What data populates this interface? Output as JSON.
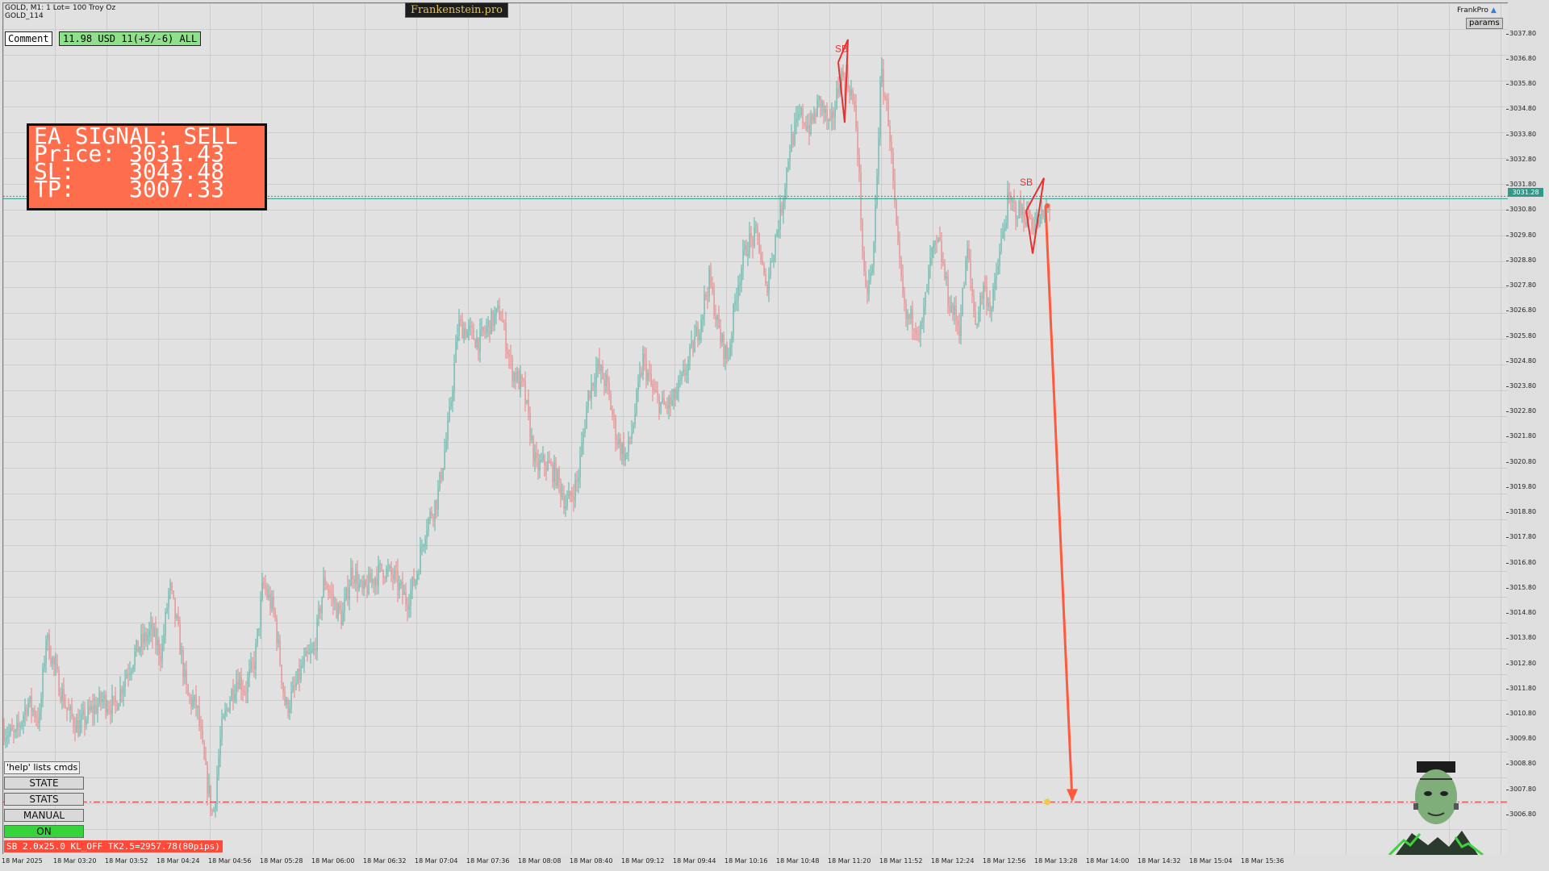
{
  "header": {
    "symbol_line": "GOLD, M1:  1 Lot= 100 Troy Oz",
    "symbol_sub": "GOLD_114",
    "brand": "Frankenstein.pro",
    "top_right_label": "FrankPro",
    "params_label": "params"
  },
  "comment": {
    "button_label": "Comment",
    "stats": "11.98 USD 11(+5/-6) ALL"
  },
  "signal": {
    "line1": "EA SIGNAL: SELL",
    "line2": "Price: 3031.43",
    "line3": "SL:    3043.48",
    "line4": "TP:    3007.33"
  },
  "controls": {
    "help": "'help' lists cmds",
    "state": "STATE",
    "stats": "STATS",
    "manual": "MANUAL",
    "on": "ON",
    "status_line": "SB 2.0x25.0 KL_OFF TK2.5=2957.78(80pips)"
  },
  "chart_data": {
    "type": "candlestick",
    "symbol": "GOLD",
    "timeframe": "M1",
    "current_price": "3031.28",
    "y_ticks": [
      "3037.80",
      "3036.80",
      "3035.80",
      "3034.80",
      "3033.80",
      "3032.80",
      "3031.80",
      "3030.80",
      "3029.80",
      "3028.80",
      "3027.80",
      "3026.80",
      "3025.80",
      "3024.80",
      "3023.80",
      "3022.80",
      "3021.80",
      "3020.80",
      "3019.80",
      "3018.80",
      "3017.80",
      "3016.80",
      "3015.80",
      "3014.80",
      "3013.80",
      "3012.80",
      "3011.80",
      "3010.80",
      "3009.80",
      "3008.80",
      "3007.80",
      "3006.80"
    ],
    "x_ticks": [
      "18 Mar 2025",
      "18 Mar 03:20",
      "18 Mar 03:52",
      "18 Mar 04:24",
      "18 Mar 04:56",
      "18 Mar 05:28",
      "18 Mar 06:00",
      "18 Mar 06:32",
      "18 Mar 07:04",
      "18 Mar 07:36",
      "18 Mar 08:08",
      "18 Mar 08:40",
      "18 Mar 09:12",
      "18 Mar 09:44",
      "18 Mar 10:16",
      "18 Mar 10:48",
      "18 Mar 11:20",
      "18 Mar 11:52",
      "18 Mar 12:24",
      "18 Mar 12:56",
      "18 Mar 13:28",
      "18 Mar 14:00",
      "18 Mar 14:32",
      "18 Mar 15:04",
      "18 Mar 15:36"
    ],
    "ylim": [
      3005.9,
      3038.4
    ],
    "price_path": [
      [
        0,
        3010.2
      ],
      [
        15,
        3009.9
      ],
      [
        30,
        3011.3
      ],
      [
        45,
        3010.6
      ],
      [
        53,
        3013.9
      ],
      [
        68,
        3012.1
      ],
      [
        80,
        3010.9
      ],
      [
        93,
        3010.3
      ],
      [
        108,
        3010.9
      ],
      [
        123,
        3011.4
      ],
      [
        138,
        3011.1
      ],
      [
        153,
        3012.5
      ],
      [
        168,
        3013.5
      ],
      [
        183,
        3014.1
      ],
      [
        196,
        3013.2
      ],
      [
        206,
        3015.9
      ],
      [
        216,
        3014.2
      ],
      [
        228,
        3011.5
      ],
      [
        240,
        3011.1
      ],
      [
        250,
        3008.6
      ],
      [
        260,
        3006.7
      ],
      [
        270,
        3010.1
      ],
      [
        280,
        3011.4
      ],
      [
        290,
        3012.3
      ],
      [
        300,
        3011.8
      ],
      [
        312,
        3013.0
      ],
      [
        322,
        3016.0
      ],
      [
        336,
        3014.8
      ],
      [
        350,
        3011.0
      ],
      [
        360,
        3011.7
      ],
      [
        372,
        3012.8
      ],
      [
        385,
        3013.3
      ],
      [
        398,
        3016.2
      ],
      [
        410,
        3015.2
      ],
      [
        420,
        3014.6
      ],
      [
        432,
        3016.6
      ],
      [
        445,
        3015.6
      ],
      [
        456,
        3016.1
      ],
      [
        470,
        3016.6
      ],
      [
        485,
        3016.2
      ],
      [
        500,
        3015.3
      ],
      [
        512,
        3016.3
      ],
      [
        523,
        3018.2
      ],
      [
        538,
        3019.4
      ],
      [
        552,
        3022.3
      ],
      [
        564,
        3026.3
      ],
      [
        576,
        3026.0
      ],
      [
        590,
        3025.6
      ],
      [
        602,
        3026.3
      ],
      [
        616,
        3026.8
      ],
      [
        630,
        3024.5
      ],
      [
        645,
        3023.7
      ],
      [
        660,
        3020.6
      ],
      [
        672,
        3020.8
      ],
      [
        685,
        3020.3
      ],
      [
        698,
        3019.1
      ],
      [
        712,
        3020.1
      ],
      [
        725,
        3023.5
      ],
      [
        736,
        3024.6
      ],
      [
        748,
        3023.9
      ],
      [
        760,
        3021.8
      ],
      [
        772,
        3021.0
      ],
      [
        780,
        3022.2
      ],
      [
        793,
        3024.9
      ],
      [
        806,
        3023.5
      ],
      [
        818,
        3023.0
      ],
      [
        830,
        3023.2
      ],
      [
        842,
        3024.1
      ],
      [
        852,
        3025.1
      ],
      [
        862,
        3026.2
      ],
      [
        875,
        3028.1
      ],
      [
        888,
        3025.8
      ],
      [
        898,
        3024.9
      ],
      [
        910,
        3027.9
      ],
      [
        922,
        3029.5
      ],
      [
        935,
        3029.8
      ],
      [
        945,
        3027.6
      ],
      [
        955,
        3029.4
      ],
      [
        965,
        3031.0
      ],
      [
        975,
        3033.4
      ],
      [
        988,
        3034.6
      ],
      [
        1000,
        3034.1
      ],
      [
        1012,
        3035.2
      ],
      [
        1025,
        3034.0
      ],
      [
        1038,
        3036.2
      ],
      [
        1050,
        3035.7
      ],
      [
        1058,
        3034.0
      ],
      [
        1068,
        3027.3
      ],
      [
        1078,
        3028.6
      ],
      [
        1088,
        3036.3
      ],
      [
        1098,
        3034.3
      ],
      [
        1108,
        3029.4
      ],
      [
        1118,
        3026.5
      ],
      [
        1128,
        3026.5
      ],
      [
        1138,
        3026.0
      ],
      [
        1150,
        3029.0
      ],
      [
        1160,
        3029.5
      ],
      [
        1172,
        3027.2
      ],
      [
        1185,
        3026.2
      ],
      [
        1195,
        3029.2
      ],
      [
        1205,
        3026.3
      ],
      [
        1215,
        3027.8
      ],
      [
        1225,
        3026.9
      ],
      [
        1235,
        3029.1
      ],
      [
        1245,
        3031.1
      ],
      [
        1258,
        3030.8
      ],
      [
        1270,
        3030.6
      ],
      [
        1280,
        3030.2
      ],
      [
        1290,
        3030.6
      ],
      [
        1297,
        3031.0
      ]
    ],
    "overlays": {
      "current_price_line": 3031.28,
      "tp_line": 3007.33,
      "markers": [
        "SB",
        "SB"
      ]
    },
    "colors": {
      "bull": "#4fb7a7",
      "bear": "#ee7f7f",
      "signal": "#ff5a3d",
      "price_line": "#2e9a8c"
    }
  }
}
